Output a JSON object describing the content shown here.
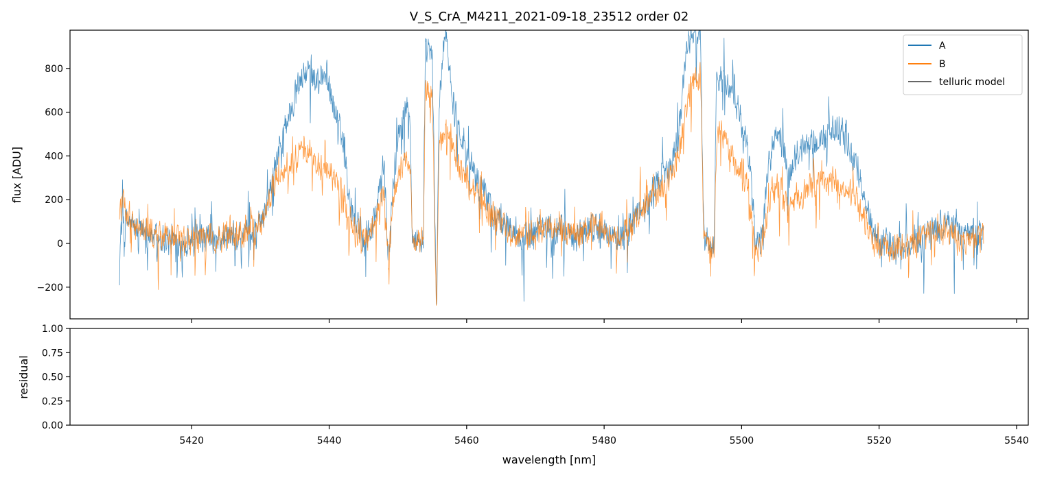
{
  "chart_data": [
    {
      "type": "line",
      "title": "V_S_CrA_M4211_2021-09-18_23512  order 02",
      "xlabel": "",
      "ylabel": "flux [ADU]",
      "xlim": [
        5402.3,
        5541.7
      ],
      "ylim": [
        -345,
        975
      ],
      "yticks": [
        -200,
        0,
        200,
        400,
        600,
        800
      ],
      "ytick_labels": [
        "−200",
        "0",
        "200",
        "400",
        "600",
        "800"
      ],
      "xticks": [
        5420,
        5440,
        5460,
        5480,
        5500,
        5520,
        5540
      ],
      "legend_position": "top-right",
      "series": [
        {
          "name": "A",
          "color": "#1f77b4",
          "noise": 120,
          "envelope": [
            [
              5409.5,
              0
            ],
            [
              5410,
              120
            ],
            [
              5412,
              60
            ],
            [
              5414,
              40
            ],
            [
              5416,
              20
            ],
            [
              5418,
              10
            ],
            [
              5420,
              0
            ],
            [
              5422,
              20
            ],
            [
              5424,
              10
            ],
            [
              5426,
              30
            ],
            [
              5428,
              30
            ],
            [
              5430,
              80
            ],
            [
              5431,
              200
            ],
            [
              5432,
              350
            ],
            [
              5433,
              480
            ],
            [
              5434,
              580
            ],
            [
              5435,
              680
            ],
            [
              5436,
              760
            ],
            [
              5437,
              780
            ],
            [
              5438,
              730
            ],
            [
              5439,
              780
            ],
            [
              5440,
              720
            ],
            [
              5441,
              600
            ],
            [
              5442,
              460
            ],
            [
              5443,
              180
            ],
            [
              5444,
              80
            ],
            [
              5445,
              10
            ],
            [
              5446,
              50
            ],
            [
              5447,
              160
            ],
            [
              5448,
              380
            ],
            [
              5448.6,
              -100
            ],
            [
              5449,
              150
            ],
            [
              5450,
              500
            ],
            [
              5451,
              620
            ],
            [
              5451.8,
              580
            ],
            [
              5452.1,
              20
            ],
            [
              5453.7,
              10
            ],
            [
              5454,
              900
            ],
            [
              5455,
              850
            ],
            [
              5455.6,
              -300
            ],
            [
              5456,
              650
            ],
            [
              5457,
              980
            ],
            [
              5458,
              640
            ],
            [
              5459,
              520
            ],
            [
              5460,
              420
            ],
            [
              5462,
              250
            ],
            [
              5464,
              140
            ],
            [
              5466,
              80
            ],
            [
              5468,
              40
            ],
            [
              5470,
              60
            ],
            [
              5472,
              80
            ],
            [
              5474,
              60
            ],
            [
              5476,
              40
            ],
            [
              5478,
              80
            ],
            [
              5480,
              60
            ],
            [
              5482,
              20
            ],
            [
              5484,
              80
            ],
            [
              5486,
              180
            ],
            [
              5488,
              280
            ],
            [
              5490,
              380
            ],
            [
              5491,
              560
            ],
            [
              5492,
              900
            ],
            [
              5493,
              960
            ],
            [
              5494,
              980
            ],
            [
              5494.5,
              30
            ],
            [
              5496,
              -20
            ],
            [
              5496.3,
              720
            ],
            [
              5497,
              780
            ],
            [
              5498,
              720
            ],
            [
              5499,
              650
            ],
            [
              5500,
              560
            ],
            [
              5501,
              420
            ],
            [
              5502,
              20
            ],
            [
              5503,
              30
            ],
            [
              5504,
              380
            ],
            [
              5505,
              520
            ],
            [
              5506,
              430
            ],
            [
              5507,
              300
            ],
            [
              5508,
              420
            ],
            [
              5509,
              440
            ],
            [
              5510,
              450
            ],
            [
              5511,
              460
            ],
            [
              5512,
              480
            ],
            [
              5513,
              520
            ],
            [
              5514,
              520
            ],
            [
              5515,
              480
            ],
            [
              5516,
              400
            ],
            [
              5517,
              320
            ],
            [
              5518,
              190
            ],
            [
              5519,
              60
            ],
            [
              5520,
              20
            ],
            [
              5522,
              -20
            ],
            [
              5524,
              0
            ],
            [
              5526,
              20
            ],
            [
              5528,
              60
            ],
            [
              5530,
              100
            ],
            [
              5532,
              40
            ],
            [
              5534,
              40
            ],
            [
              5535.2,
              40
            ]
          ]
        },
        {
          "name": "B",
          "color": "#ff7f0e",
          "noise": 110,
          "envelope": [
            [
              5409.5,
              150
            ],
            [
              5410,
              180
            ],
            [
              5412,
              70
            ],
            [
              5414,
              50
            ],
            [
              5416,
              30
            ],
            [
              5418,
              20
            ],
            [
              5420,
              10
            ],
            [
              5422,
              30
            ],
            [
              5424,
              20
            ],
            [
              5426,
              40
            ],
            [
              5428,
              40
            ],
            [
              5430,
              90
            ],
            [
              5431,
              180
            ],
            [
              5432,
              280
            ],
            [
              5433,
              320
            ],
            [
              5434,
              350
            ],
            [
              5435,
              390
            ],
            [
              5436,
              400
            ],
            [
              5437,
              420
            ],
            [
              5438,
              360
            ],
            [
              5439,
              350
            ],
            [
              5440,
              330
            ],
            [
              5441,
              280
            ],
            [
              5442,
              220
            ],
            [
              5443,
              100
            ],
            [
              5444,
              40
            ],
            [
              5445,
              0
            ],
            [
              5446,
              40
            ],
            [
              5447,
              120
            ],
            [
              5448,
              250
            ],
            [
              5448.6,
              -80
            ],
            [
              5449,
              150
            ],
            [
              5450,
              300
            ],
            [
              5451,
              380
            ],
            [
              5451.8,
              360
            ],
            [
              5452.1,
              20
            ],
            [
              5453.7,
              10
            ],
            [
              5454,
              700
            ],
            [
              5455,
              680
            ],
            [
              5455.6,
              -300
            ],
            [
              5456,
              480
            ],
            [
              5457,
              520
            ],
            [
              5458,
              430
            ],
            [
              5459,
              360
            ],
            [
              5460,
              300
            ],
            [
              5462,
              200
            ],
            [
              5464,
              120
            ],
            [
              5466,
              60
            ],
            [
              5468,
              30
            ],
            [
              5470,
              60
            ],
            [
              5472,
              80
            ],
            [
              5474,
              60
            ],
            [
              5476,
              40
            ],
            [
              5478,
              80
            ],
            [
              5480,
              60
            ],
            [
              5482,
              20
            ],
            [
              5484,
              80
            ],
            [
              5486,
              160
            ],
            [
              5488,
              240
            ],
            [
              5490,
              330
            ],
            [
              5491,
              440
            ],
            [
              5492,
              620
            ],
            [
              5493,
              760
            ],
            [
              5494,
              780
            ],
            [
              5494.5,
              30
            ],
            [
              5496,
              -20
            ],
            [
              5496.3,
              460
            ],
            [
              5497,
              520
            ],
            [
              5498,
              440
            ],
            [
              5499,
              380
            ],
            [
              5500,
              340
            ],
            [
              5501,
              250
            ],
            [
              5502,
              -40
            ],
            [
              5503,
              -20
            ],
            [
              5504,
              180
            ],
            [
              5505,
              280
            ],
            [
              5506,
              230
            ],
            [
              5507,
              150
            ],
            [
              5508,
              220
            ],
            [
              5509,
              240
            ],
            [
              5510,
              250
            ],
            [
              5511,
              260
            ],
            [
              5512,
              270
            ],
            [
              5513,
              290
            ],
            [
              5514,
              280
            ],
            [
              5515,
              260
            ],
            [
              5516,
              220
            ],
            [
              5517,
              180
            ],
            [
              5518,
              110
            ],
            [
              5519,
              20
            ],
            [
              5520,
              0
            ],
            [
              5522,
              -30
            ],
            [
              5524,
              -10
            ],
            [
              5526,
              10
            ],
            [
              5528,
              40
            ],
            [
              5530,
              60
            ],
            [
              5532,
              20
            ],
            [
              5534,
              20
            ],
            [
              5535.2,
              20
            ]
          ]
        },
        {
          "name": "telluric model",
          "color": "#666666",
          "envelope": []
        }
      ]
    },
    {
      "type": "line",
      "title": "",
      "xlabel": "wavelength [nm]",
      "ylabel": "residual",
      "xlim": [
        5402.3,
        5541.7
      ],
      "ylim": [
        0,
        1
      ],
      "yticks": [
        0,
        0.25,
        0.5,
        0.75,
        1.0
      ],
      "ytick_labels": [
        "0.00",
        "0.25",
        "0.50",
        "0.75",
        "1.00"
      ],
      "xticks": [
        5420,
        5440,
        5460,
        5480,
        5500,
        5520,
        5540
      ],
      "xtick_labels": [
        "5420",
        "5440",
        "5460",
        "5480",
        "5500",
        "5520",
        "5540"
      ],
      "series": []
    }
  ]
}
